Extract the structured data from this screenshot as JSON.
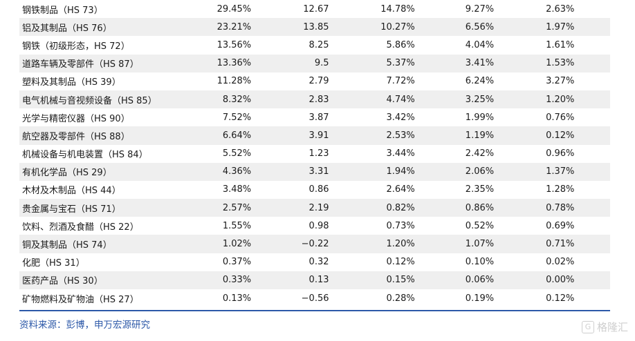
{
  "table": {
    "rows": [
      [
        "钢铁制品（HS 73）",
        "29.45%",
        "12.67",
        "14.78%",
        "9.27%",
        "2.63%"
      ],
      [
        "铝及其制品（HS 76）",
        "23.21%",
        "13.85",
        "10.27%",
        "6.56%",
        "1.97%"
      ],
      [
        "钢铁（初级形态，HS 72）",
        "13.56%",
        "8.25",
        "5.86%",
        "4.04%",
        "1.61%"
      ],
      [
        "道路车辆及零部件（HS 87）",
        "13.36%",
        "9.5",
        "5.37%",
        "3.41%",
        "1.53%"
      ],
      [
        "塑料及其制品（HS 39）",
        "11.28%",
        "2.79",
        "7.72%",
        "6.24%",
        "3.27%"
      ],
      [
        "电气机械与音视频设备（HS 85）",
        "8.32%",
        "2.83",
        "4.74%",
        "3.25%",
        "1.20%"
      ],
      [
        "光学与精密仪器（HS 90）",
        "7.52%",
        "3.87",
        "3.42%",
        "1.99%",
        "0.76%"
      ],
      [
        "航空器及零部件（HS 88）",
        "6.64%",
        "3.91",
        "2.53%",
        "1.19%",
        "0.12%"
      ],
      [
        "机械设备与机电装置（HS 84）",
        "5.52%",
        "1.23",
        "3.44%",
        "2.42%",
        "0.96%"
      ],
      [
        "有机化学品（HS 29）",
        "4.36%",
        "3.31",
        "1.94%",
        "2.06%",
        "1.37%"
      ],
      [
        "木材及木制品（HS 44）",
        "3.48%",
        "0.86",
        "2.64%",
        "2.35%",
        "1.28%"
      ],
      [
        "贵金属与宝石（HS 71）",
        "2.57%",
        "2.19",
        "0.82%",
        "0.86%",
        "0.78%"
      ],
      [
        "饮料、烈酒及食醋（HS 22）",
        "1.55%",
        "0.98",
        "0.73%",
        "0.52%",
        "0.69%"
      ],
      [
        "铜及其制品（HS 74）",
        "1.02%",
        "−0.22",
        "1.20%",
        "1.07%",
        "0.71%"
      ],
      [
        "化肥（HS 31）",
        "0.37%",
        "0.32",
        "0.12%",
        "0.10%",
        "0.02%"
      ],
      [
        "医药产品（HS 30）",
        "0.33%",
        "0.13",
        "0.15%",
        "0.06%",
        "0.00%"
      ],
      [
        "矿物燃料及矿物油（HS 27）",
        "0.13%",
        "−0.56",
        "0.28%",
        "0.19%",
        "0.12%"
      ]
    ]
  },
  "footer": {
    "source": "资料来源：彭博，申万宏源研究",
    "watermark_icon": "G",
    "watermark_text": "格隆汇"
  },
  "colors": {
    "accent": "#2c58a8",
    "stripe": "#efefef"
  }
}
